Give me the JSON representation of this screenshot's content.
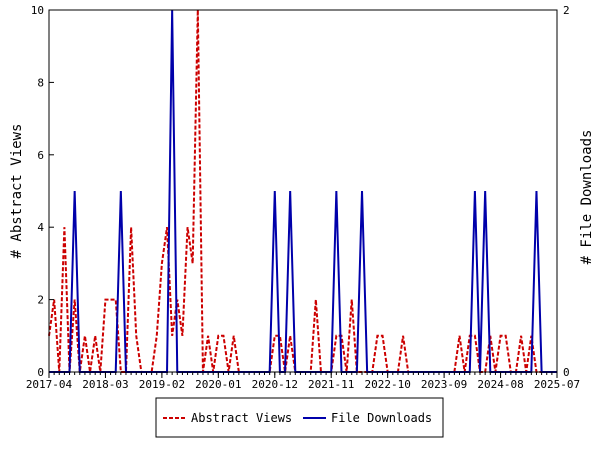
{
  "chart_data": {
    "type": "line",
    "x_tick_labels": [
      "2017-04",
      "2018-03",
      "2019-02",
      "2020-01",
      "2020-12",
      "2021-11",
      "2022-10",
      "2023-09",
      "2024-08",
      "2025-07"
    ],
    "y_left_label": "# Abstract Views",
    "y_right_label": "# File Downloads",
    "y_left_range": [
      0,
      10
    ],
    "y_right_range": [
      0,
      2
    ],
    "y_left_ticks": [
      "0",
      "2",
      "4",
      "6",
      "8",
      "10"
    ],
    "y_right_ticks": [
      "0",
      "2"
    ],
    "legend_position": "bottom",
    "months": [
      "2017-04",
      "2017-05",
      "2017-06",
      "2017-07",
      "2017-08",
      "2017-09",
      "2017-10",
      "2017-11",
      "2017-12",
      "2018-01",
      "2018-02",
      "2018-03",
      "2018-04",
      "2018-05",
      "2018-06",
      "2018-07",
      "2018-08",
      "2018-09",
      "2018-10",
      "2018-11",
      "2018-12",
      "2019-01",
      "2019-02",
      "2019-03",
      "2019-04",
      "2019-05",
      "2019-06",
      "2019-07",
      "2019-08",
      "2019-09",
      "2019-10",
      "2019-11",
      "2019-12",
      "2020-01",
      "2020-02",
      "2020-03",
      "2020-04",
      "2020-05",
      "2020-06",
      "2020-07",
      "2020-08",
      "2020-09",
      "2020-10",
      "2020-11",
      "2020-12",
      "2021-01",
      "2021-02",
      "2021-03",
      "2021-04",
      "2021-05",
      "2021-06",
      "2021-07",
      "2021-08",
      "2021-09",
      "2021-10",
      "2021-11",
      "2021-12",
      "2022-01",
      "2022-02",
      "2022-03",
      "2022-04",
      "2022-05",
      "2022-06",
      "2022-07",
      "2022-08",
      "2022-09",
      "2022-10",
      "2022-11",
      "2022-12",
      "2023-01",
      "2023-02",
      "2023-03",
      "2023-04",
      "2023-05",
      "2023-06",
      "2023-07",
      "2023-08",
      "2023-09",
      "2023-10",
      "2023-11",
      "2023-12",
      "2024-01",
      "2024-02",
      "2024-03",
      "2024-04",
      "2024-05",
      "2024-06",
      "2024-07",
      "2024-08",
      "2024-09",
      "2024-10",
      "2024-11",
      "2024-12",
      "2025-01",
      "2025-02",
      "2025-03",
      "2025-04",
      "2025-05",
      "2025-06",
      "2025-07"
    ],
    "series": [
      {
        "name": "Abstract Views",
        "color": "#cc0000",
        "axis": "left",
        "values": [
          1,
          2,
          0,
          4,
          0,
          2,
          0,
          1,
          0,
          1,
          0,
          2,
          2,
          2,
          0,
          0,
          4,
          1,
          0,
          0,
          0,
          1,
          3,
          4,
          1,
          2,
          1,
          4,
          3,
          10,
          0,
          1,
          0,
          1,
          1,
          0,
          1,
          0,
          0,
          0,
          0,
          0,
          0,
          0,
          1,
          1,
          0,
          1,
          0,
          0,
          0,
          0,
          2,
          0,
          0,
          0,
          1,
          1,
          0,
          2,
          0,
          0,
          0,
          0,
          1,
          1,
          0,
          0,
          0,
          1,
          0,
          0,
          0,
          0,
          0,
          0,
          0,
          0,
          0,
          0,
          1,
          0,
          1,
          1,
          0,
          0,
          1,
          0,
          1,
          1,
          0,
          0,
          1,
          0,
          1,
          0,
          0,
          0,
          0,
          0
        ]
      },
      {
        "name": "File Downloads",
        "color": "#0000aa",
        "axis": "right",
        "values": [
          0,
          0,
          0,
          0,
          0,
          1,
          0,
          0,
          0,
          0,
          0,
          0,
          0,
          0,
          1,
          0,
          0,
          0,
          0,
          0,
          0,
          0,
          0,
          0,
          2,
          0,
          0,
          0,
          0,
          0,
          0,
          0,
          0,
          0,
          0,
          0,
          0,
          0,
          0,
          0,
          0,
          0,
          0,
          0,
          1,
          0,
          0,
          1,
          0,
          0,
          0,
          0,
          0,
          0,
          0,
          0,
          1,
          0,
          0,
          0,
          0,
          1,
          0,
          0,
          0,
          0,
          0,
          0,
          0,
          0,
          0,
          0,
          0,
          0,
          0,
          0,
          0,
          0,
          0,
          0,
          0,
          0,
          0,
          1,
          0,
          1,
          0,
          0,
          0,
          0,
          0,
          0,
          0,
          0,
          0,
          1,
          0,
          0,
          0,
          0
        ]
      }
    ]
  }
}
